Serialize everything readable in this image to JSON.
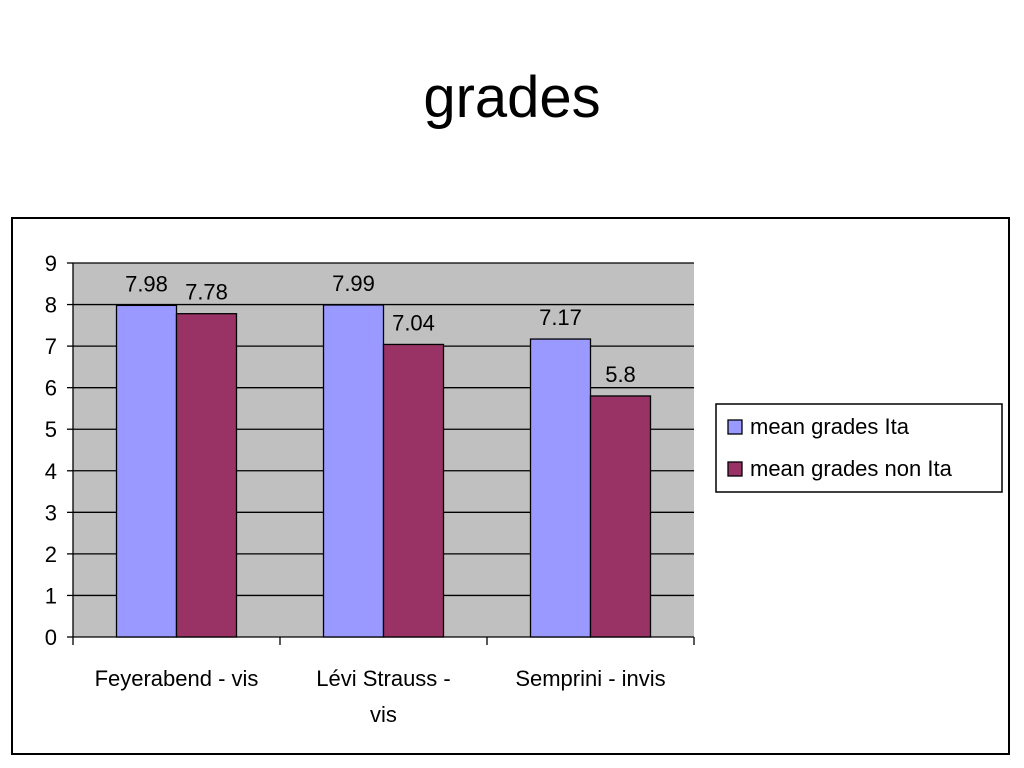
{
  "slide": {
    "title": "grades"
  },
  "chart_data": {
    "type": "bar",
    "title": "",
    "xlabel": "",
    "ylabel": "",
    "ylim": [
      0,
      9
    ],
    "yticks": [
      0,
      1,
      2,
      3,
      4,
      5,
      6,
      7,
      8,
      9
    ],
    "grid": true,
    "legend": "right",
    "categories": [
      "Feyerabend - vis",
      "Lévi Strauss - vis",
      "Semprini - invis"
    ],
    "category_lines": [
      [
        "Feyerabend - vis"
      ],
      [
        "Lévi Strauss -",
        "vis"
      ],
      [
        "Semprini - invis"
      ]
    ],
    "series": [
      {
        "name": "mean grades Ita",
        "values": [
          7.98,
          7.99,
          7.17
        ],
        "labels": [
          "7.98",
          "7.99",
          "7.17"
        ],
        "color": "#9999ff"
      },
      {
        "name": "mean grades non Ita",
        "values": [
          7.78,
          7.04,
          5.8
        ],
        "labels": [
          "7.78",
          "7.04",
          "5.8"
        ],
        "color": "#993366"
      }
    ],
    "plot_background": "#c0c0c0"
  }
}
